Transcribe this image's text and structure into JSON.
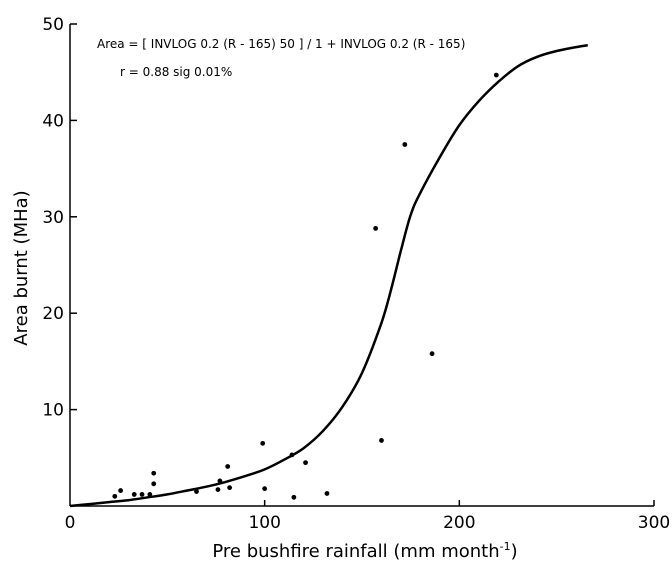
{
  "chart_data": {
    "type": "scatter",
    "title": "",
    "xlabel": "Pre bushfire rainfall (mm month",
    "xlabel_superscript": "-1",
    "xlabel_close": ")",
    "ylabel": "Area burnt (MHa)",
    "xlim": [
      0,
      300
    ],
    "ylim": [
      0,
      50
    ],
    "xticks": [
      0,
      100,
      200,
      300
    ],
    "yticks": [
      10,
      20,
      30,
      40,
      50
    ],
    "grid": false,
    "annotations": [
      "Area = [ INVLOG 0.2 (R - 165) 50 ] / 1 + INVLOG 0.2 (R - 165)",
      "r = 0.88 sig 0.01%"
    ],
    "points": [
      {
        "x": 23,
        "y": 1.0
      },
      {
        "x": 26,
        "y": 1.6
      },
      {
        "x": 33,
        "y": 1.2
      },
      {
        "x": 37,
        "y": 1.2
      },
      {
        "x": 41,
        "y": 1.2
      },
      {
        "x": 43,
        "y": 2.3
      },
      {
        "x": 43,
        "y": 3.4
      },
      {
        "x": 65,
        "y": 1.5
      },
      {
        "x": 76,
        "y": 1.7
      },
      {
        "x": 77,
        "y": 2.6
      },
      {
        "x": 81,
        "y": 4.1
      },
      {
        "x": 82,
        "y": 1.9
      },
      {
        "x": 99,
        "y": 6.5
      },
      {
        "x": 100,
        "y": 1.8
      },
      {
        "x": 114,
        "y": 5.3
      },
      {
        "x": 115,
        "y": 0.9
      },
      {
        "x": 121,
        "y": 4.5
      },
      {
        "x": 132,
        "y": 1.3
      },
      {
        "x": 157,
        "y": 28.8
      },
      {
        "x": 160,
        "y": 6.8
      },
      {
        "x": 172,
        "y": 37.5
      },
      {
        "x": 186,
        "y": 15.8
      },
      {
        "x": 219,
        "y": 44.7
      }
    ],
    "curve": [
      [
        0,
        0.0
      ],
      [
        10,
        0.2
      ],
      [
        20,
        0.4
      ],
      [
        30,
        0.6
      ],
      [
        40,
        0.9
      ],
      [
        50,
        1.2
      ],
      [
        60,
        1.6
      ],
      [
        70,
        2.0
      ],
      [
        80,
        2.5
      ],
      [
        90,
        3.1
      ],
      [
        100,
        3.8
      ],
      [
        110,
        4.8
      ],
      [
        120,
        6.0
      ],
      [
        130,
        7.8
      ],
      [
        140,
        10.3
      ],
      [
        150,
        13.8
      ],
      [
        160,
        19.0
      ],
      [
        165,
        22.5
      ],
      [
        170,
        26.5
      ],
      [
        175,
        30.2
      ],
      [
        180,
        32.5
      ],
      [
        190,
        36.2
      ],
      [
        200,
        39.5
      ],
      [
        210,
        42.0
      ],
      [
        220,
        44.0
      ],
      [
        230,
        45.6
      ],
      [
        240,
        46.6
      ],
      [
        250,
        47.2
      ],
      [
        260,
        47.6
      ],
      [
        266,
        47.8
      ]
    ]
  }
}
